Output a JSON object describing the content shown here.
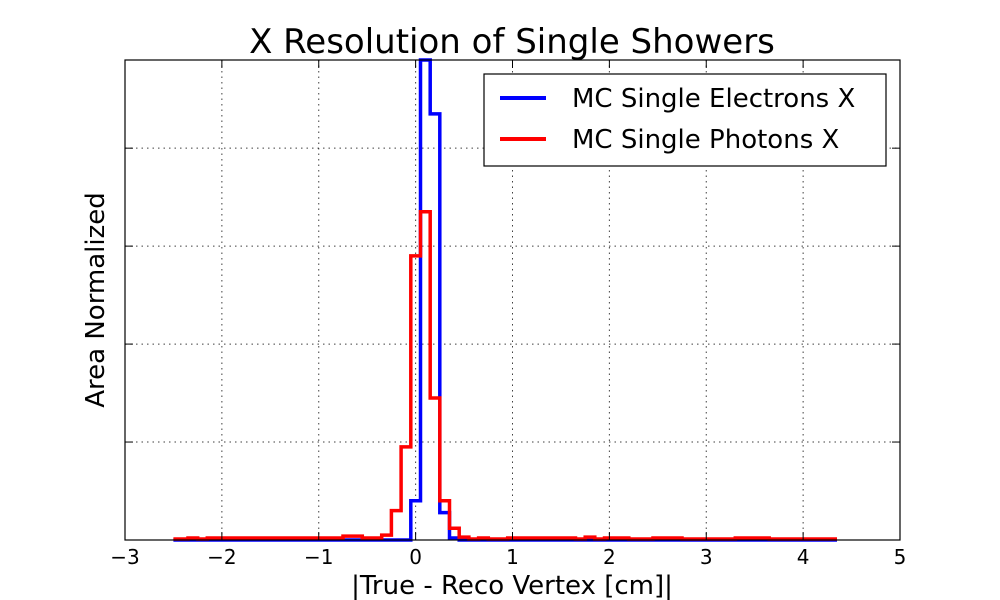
{
  "chart_data": {
    "type": "line",
    "title": "X Resolution of Single Showers",
    "xlabel": "|True - Reco Vertex [cm]|",
    "ylabel": "Area Normalized",
    "xlim": [
      -3,
      5
    ],
    "ylim": [
      0,
      0.49
    ],
    "xticks": [
      "−3",
      "−2",
      "−1",
      "0",
      "1",
      "2",
      "3",
      "4",
      "5"
    ],
    "xtick_values": [
      -3,
      -2,
      -1,
      0,
      1,
      2,
      3,
      4,
      5
    ],
    "ytick_values": [
      0.1,
      0.2,
      0.3,
      0.4
    ],
    "show_ytick_labels": false,
    "grid": true,
    "legend_position": "top-right",
    "series": [
      {
        "name": "MC Single Electrons X",
        "color": "#0000ff",
        "drawstyle": "steps-mid",
        "x": [
          -2.5,
          -2.3,
          -2.2,
          -0.2,
          -0.1,
          0.0,
          0.1,
          0.2,
          0.3,
          0.4,
          0.5,
          0.6,
          4.35
        ],
        "y": [
          0,
          0,
          0,
          0,
          0,
          0.04,
          0.49,
          0.435,
          0.028,
          0.002,
          0,
          0,
          0
        ]
      },
      {
        "name": "MC Single Photons X",
        "color": "#ff0000",
        "drawstyle": "steps-mid",
        "x": [
          -2.5,
          -2.4,
          -2.3,
          -2.2,
          -2.1,
          -1.6,
          -0.8,
          -0.7,
          -0.4,
          -0.3,
          -0.2,
          -0.1,
          0.0,
          0.1,
          0.2,
          0.3,
          0.4,
          0.5,
          0.6,
          0.7,
          0.8,
          1.1,
          1.6,
          1.7,
          1.8,
          1.9,
          2.0,
          2.4,
          2.5,
          3.0,
          3.6,
          3.7,
          4.35
        ],
        "y": [
          0.001,
          0.001,
          0.002,
          0.001,
          0.002,
          0.002,
          0.002,
          0.004,
          0.002,
          0.005,
          0.03,
          0.095,
          0.29,
          0.335,
          0.145,
          0.04,
          0.012,
          0.003,
          0.001,
          0.002,
          0.001,
          0.002,
          0.002,
          0.001,
          0.003,
          0.001,
          0.002,
          0.001,
          0.002,
          0.001,
          0.002,
          0.001,
          0.001
        ]
      }
    ]
  }
}
